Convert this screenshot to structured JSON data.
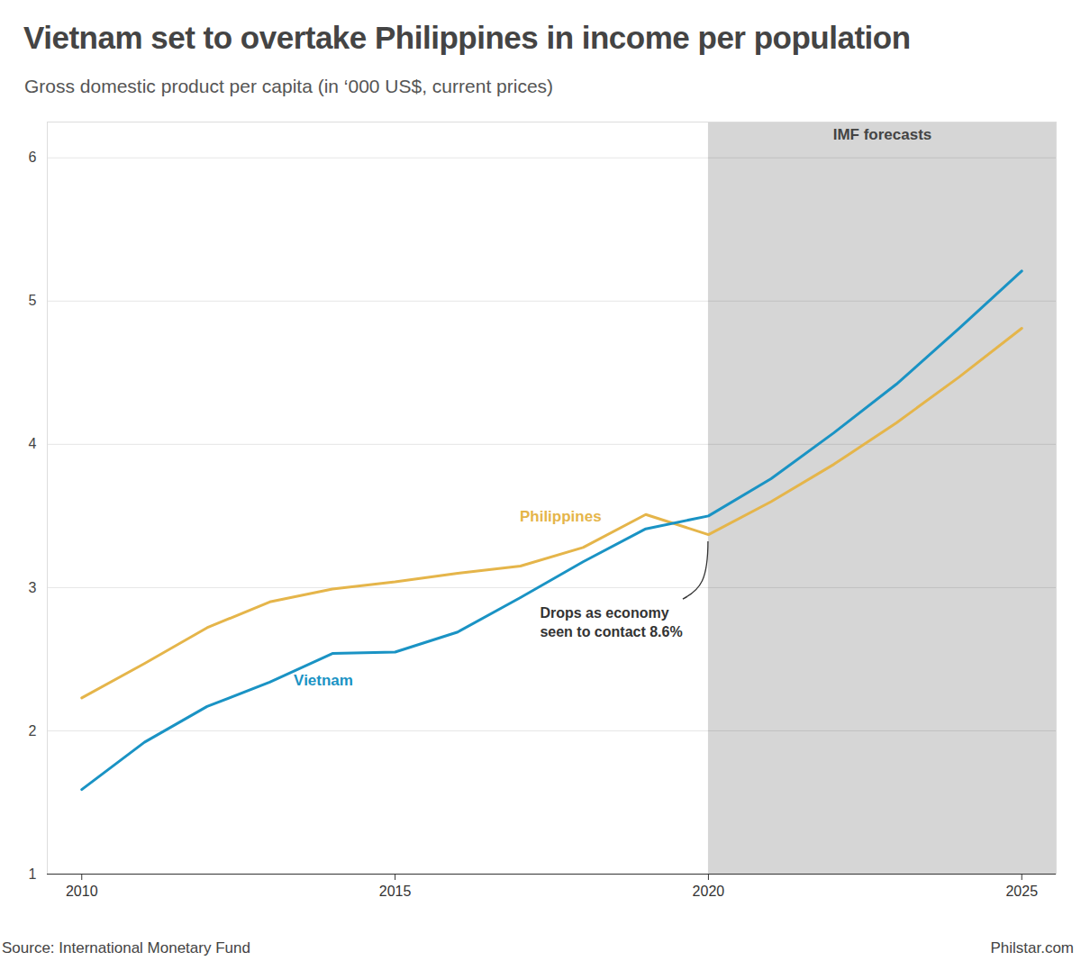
{
  "chart_data": {
    "type": "line",
    "title": "Vietnam set to overtake Philippines in income per population",
    "subtitle": "Gross domestic product per capita (in ‘000 US$, current prices)",
    "x": [
      2010,
      2011,
      2012,
      2013,
      2014,
      2015,
      2016,
      2017,
      2018,
      2019,
      2020,
      2021,
      2022,
      2023,
      2024,
      2025
    ],
    "series": [
      {
        "name": "Philippines",
        "color": "#e5b54a",
        "values": [
          2.23,
          2.47,
          2.72,
          2.9,
          2.99,
          3.04,
          3.1,
          3.15,
          3.28,
          3.51,
          3.37,
          3.6,
          3.86,
          4.15,
          4.47,
          4.81
        ]
      },
      {
        "name": "Vietnam",
        "color": "#1a93c4",
        "values": [
          1.59,
          1.92,
          2.17,
          2.34,
          2.54,
          2.55,
          2.69,
          2.93,
          3.18,
          3.41,
          3.5,
          3.76,
          4.08,
          4.42,
          4.81,
          5.21
        ]
      }
    ],
    "xlim": [
      2009.45,
      2025.55
    ],
    "xticks": [
      2010,
      2015,
      2020,
      2025
    ],
    "ylim": [
      1,
      6.25
    ],
    "yticks": [
      1,
      2,
      3,
      4,
      5,
      6
    ],
    "grid": true,
    "forecast": {
      "label": "IMF forecasts",
      "start": 2020
    },
    "annotations": [
      {
        "text": "Drops as economy\nseen to contact 8.6%",
        "x": 2020,
        "y": 3.37
      }
    ],
    "source": "Source: International Monetary Fund",
    "credit": "Philstar.com"
  }
}
